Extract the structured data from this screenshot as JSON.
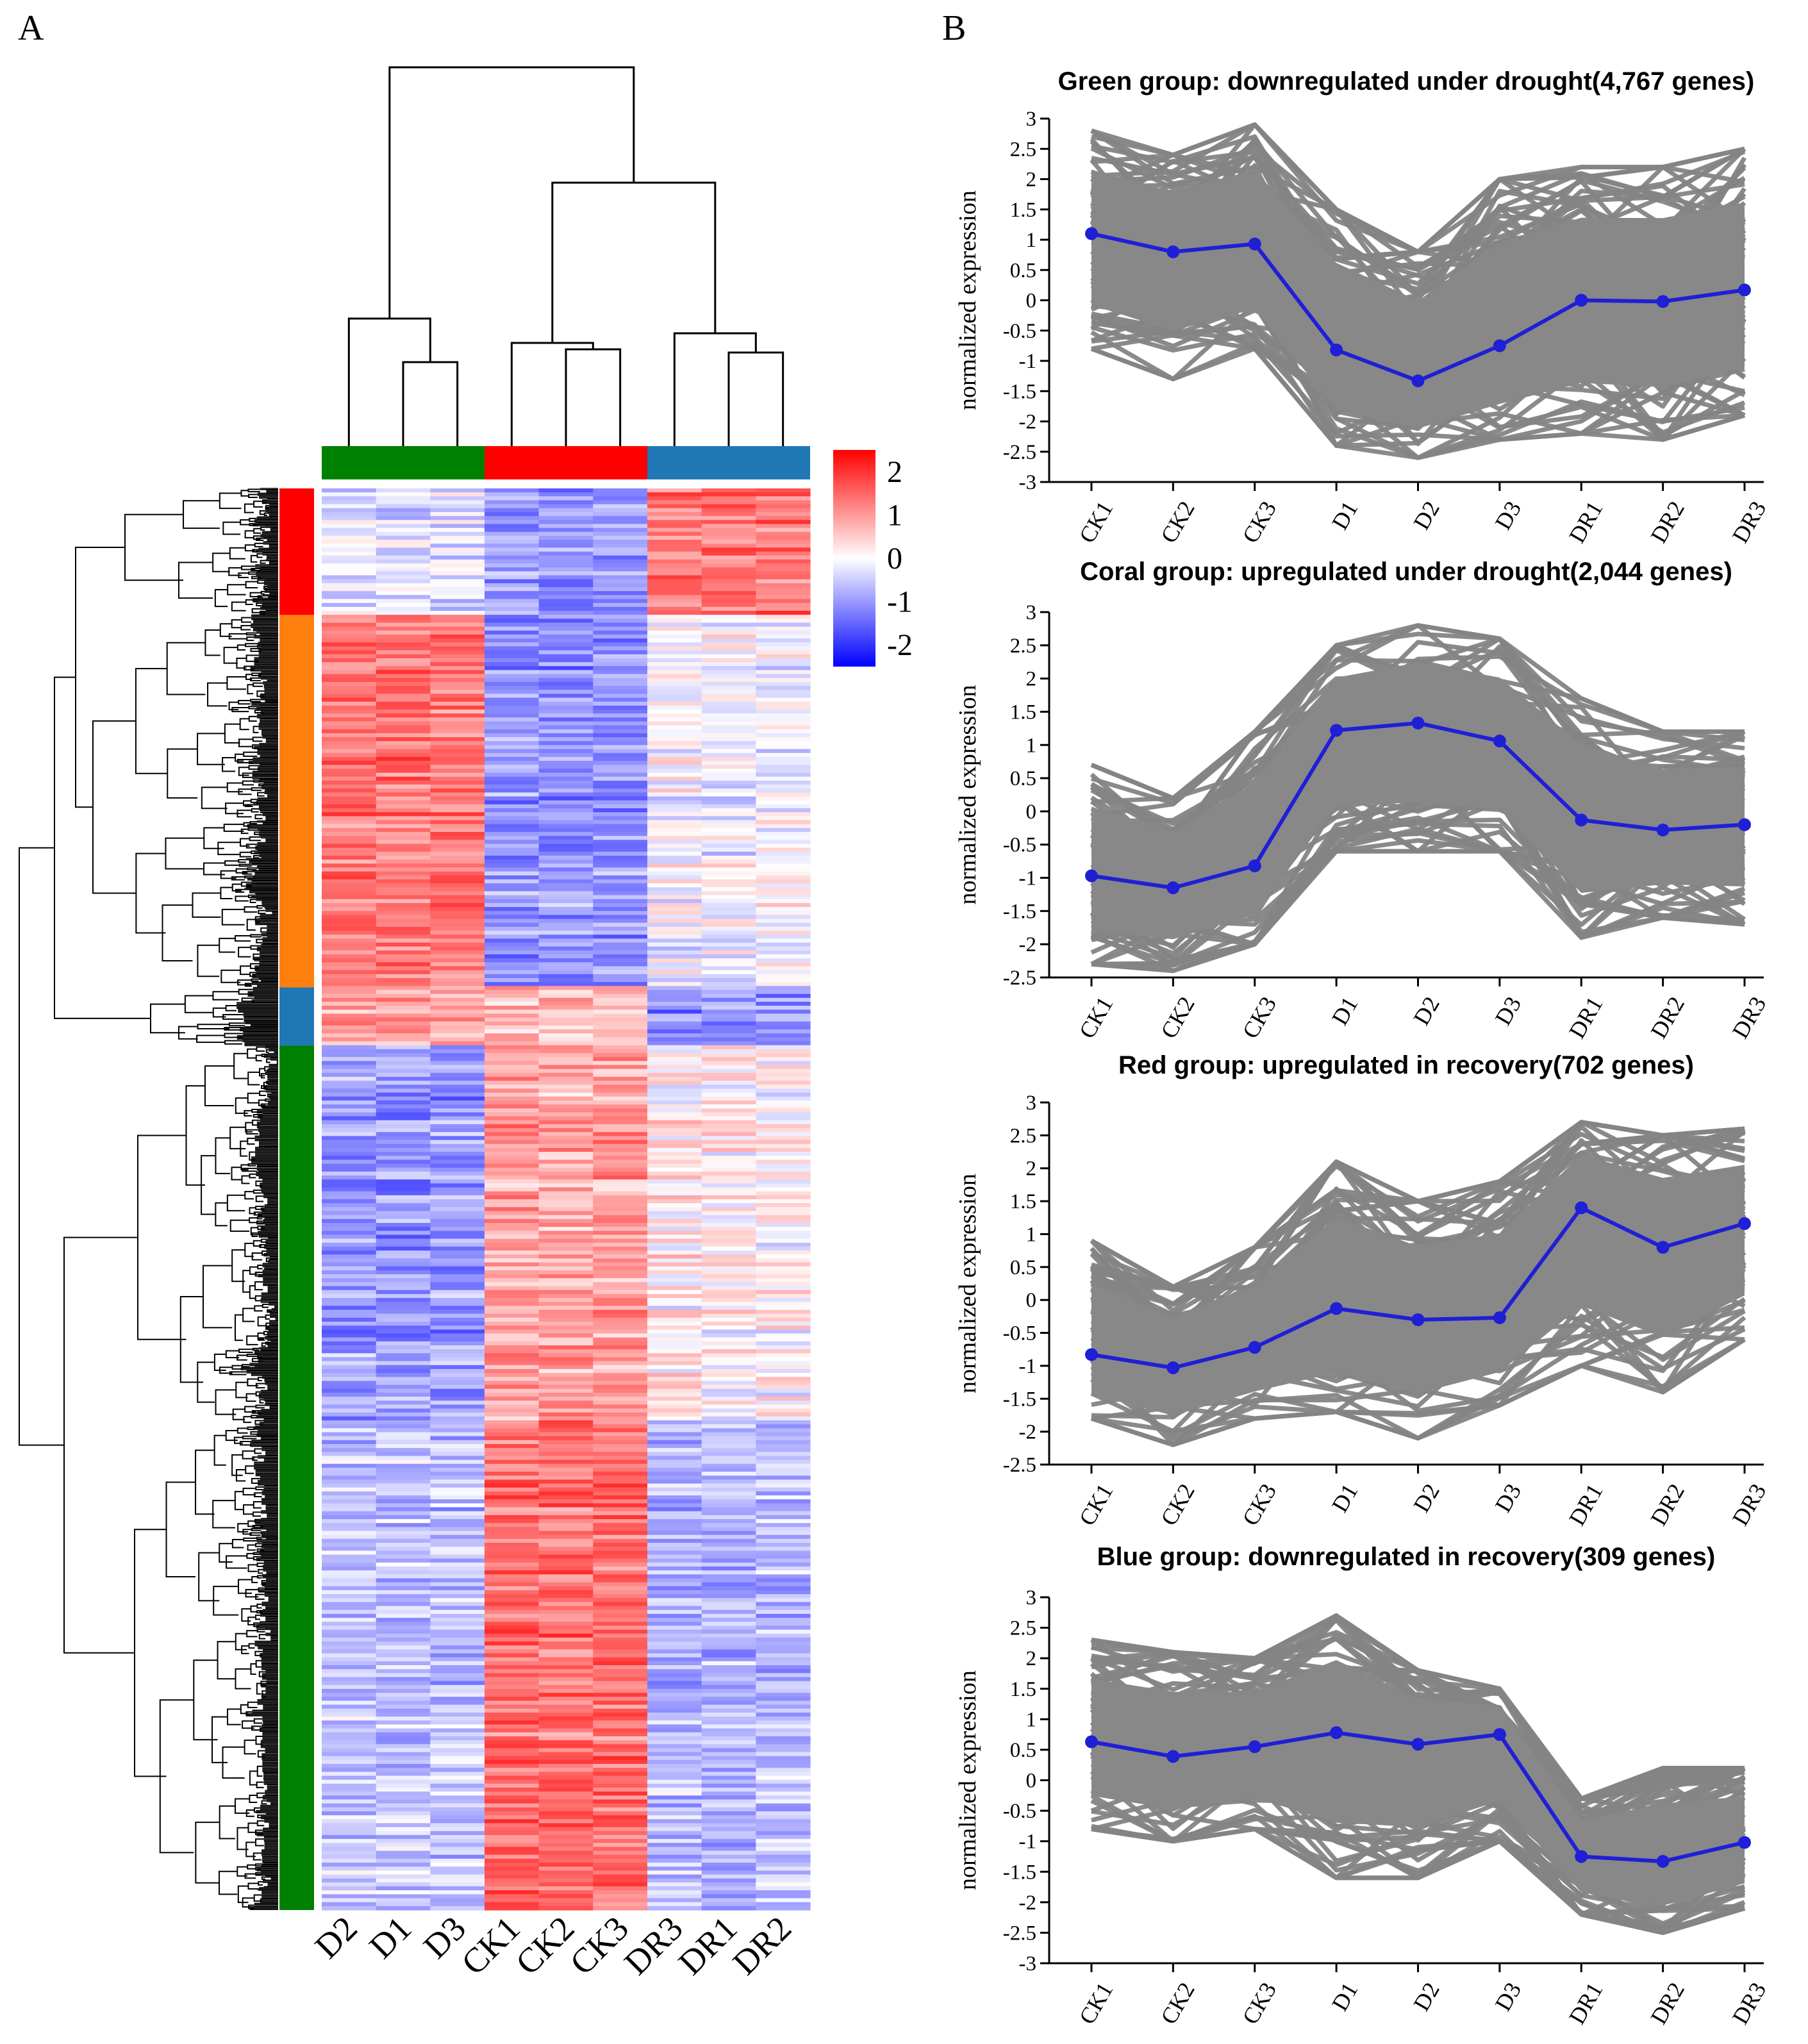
{
  "panel_labels": {
    "a": "A",
    "b": "B"
  },
  "chart_data": [
    {
      "type": "heatmap",
      "panel": "A",
      "columns": [
        "D2",
        "D1",
        "D3",
        "CK1",
        "CK2",
        "CK3",
        "DR3",
        "DR1",
        "DR2"
      ],
      "column_groups": [
        {
          "color": "#008000",
          "columns": [
            "D2",
            "D1",
            "D3"
          ]
        },
        {
          "color": "#ff0000",
          "columns": [
            "CK1",
            "CK2",
            "CK3"
          ]
        },
        {
          "color": "#1f77b4",
          "columns": [
            "DR3",
            "DR1",
            "DR2"
          ]
        }
      ],
      "row_clusters": [
        {
          "color": "#ff0000",
          "share": 0.089
        },
        {
          "color": "#ff7f0e",
          "share": 0.262
        },
        {
          "color": "#1f77b4",
          "share": 0.041
        },
        {
          "color": "#008000",
          "share": 0.608
        }
      ],
      "colorbar": {
        "min": -2.5,
        "max": 2.5,
        "ticks": [
          "2",
          "1",
          "0",
          "-1",
          "-2"
        ],
        "colors": [
          "#0000ff",
          "#ffffff",
          "#ff0000"
        ]
      },
      "dendrogram": {
        "columns": "top",
        "rows": "left"
      }
    },
    {
      "type": "line",
      "panel": "B",
      "title": "Green group:  downregulated under drought(4,767 genes)",
      "ylabel": "normalized expression",
      "categories": [
        "CK1",
        "CK2",
        "CK3",
        "D1",
        "D2",
        "D3",
        "DR1",
        "DR2",
        "DR3"
      ],
      "ylim": [
        -3,
        3
      ],
      "yticks": [
        "3",
        "2.5",
        "2",
        "1.5",
        "1",
        "0.5",
        "0",
        "-0.5",
        "-1",
        "-1.5",
        "-2",
        "-2.5",
        "-3"
      ],
      "mean_series": [
        1.1,
        0.8,
        0.93,
        -0.82,
        -1.33,
        -0.75,
        0.0,
        -0.02,
        0.17
      ],
      "gene_envelope": {
        "upper": [
          2.8,
          2.4,
          2.9,
          1.5,
          0.8,
          2.0,
          2.2,
          2.2,
          2.5
        ],
        "lower": [
          -0.8,
          -1.3,
          -0.8,
          -2.4,
          -2.6,
          -2.3,
          -2.2,
          -2.3,
          -1.9
        ]
      }
    },
    {
      "type": "line",
      "panel": "B",
      "title": "Coral group:  upregulated under drought(2,044 genes)",
      "ylabel": "normalized expression",
      "categories": [
        "CK1",
        "CK2",
        "CK3",
        "D1",
        "D2",
        "D3",
        "DR1",
        "DR2",
        "DR3"
      ],
      "ylim": [
        -2.5,
        3
      ],
      "yticks": [
        "3",
        "2.5",
        "2",
        "1.5",
        "1",
        "0.5",
        "0",
        "-0.5",
        "-1",
        "-1.5",
        "-2",
        "-2.5"
      ],
      "mean_series": [
        -0.97,
        -1.15,
        -0.82,
        1.22,
        1.33,
        1.06,
        -0.13,
        -0.28,
        -0.2
      ],
      "gene_envelope": {
        "upper": [
          0.7,
          0.2,
          1.2,
          2.5,
          2.8,
          2.6,
          1.7,
          1.2,
          1.2
        ],
        "lower": [
          -2.3,
          -2.4,
          -2.0,
          -0.6,
          -0.6,
          -0.6,
          -1.9,
          -1.6,
          -1.7
        ]
      }
    },
    {
      "type": "line",
      "panel": "B",
      "title": "Red group:  upregulated in recovery(702 genes)",
      "ylabel": "normalized expression",
      "categories": [
        "CK1",
        "CK2",
        "CK3",
        "D1",
        "D2",
        "D3",
        "DR1",
        "DR2",
        "DR3"
      ],
      "ylim": [
        -2.5,
        3
      ],
      "yticks": [
        "3",
        "2.5",
        "2",
        "1.5",
        "1",
        "0.5",
        "0",
        "-0.5",
        "-1",
        "-1.5",
        "-2",
        "-2.5"
      ],
      "mean_series": [
        -0.83,
        -1.03,
        -0.72,
        -0.13,
        -0.3,
        -0.27,
        1.4,
        0.8,
        1.16
      ],
      "gene_envelope": {
        "upper": [
          0.9,
          0.2,
          0.8,
          2.1,
          1.5,
          1.8,
          2.7,
          2.5,
          2.6
        ],
        "lower": [
          -1.8,
          -2.2,
          -1.8,
          -1.7,
          -2.1,
          -1.6,
          -1.0,
          -1.4,
          -0.6
        ]
      }
    },
    {
      "type": "line",
      "panel": "B",
      "title": "Blue group:  downregulated in recovery(309 genes)",
      "ylabel": "normalized expression",
      "categories": [
        "CK1",
        "CK2",
        "CK3",
        "D1",
        "D2",
        "D3",
        "DR1",
        "DR2",
        "DR3"
      ],
      "ylim": [
        -3,
        3
      ],
      "yticks": [
        "3",
        "2.5",
        "2",
        "1.5",
        "1",
        "0.5",
        "0",
        "-0.5",
        "-1",
        "-1.5",
        "-2",
        "-2.5",
        "-3"
      ],
      "mean_series": [
        0.63,
        0.39,
        0.55,
        0.78,
        0.59,
        0.75,
        -1.25,
        -1.33,
        -1.02
      ],
      "gene_envelope": {
        "upper": [
          2.3,
          2.1,
          2.0,
          2.7,
          1.8,
          1.5,
          -0.3,
          0.2,
          0.2
        ],
        "lower": [
          -0.8,
          -1.0,
          -0.8,
          -1.6,
          -1.6,
          -1.0,
          -2.2,
          -2.5,
          -2.1
        ]
      }
    }
  ]
}
